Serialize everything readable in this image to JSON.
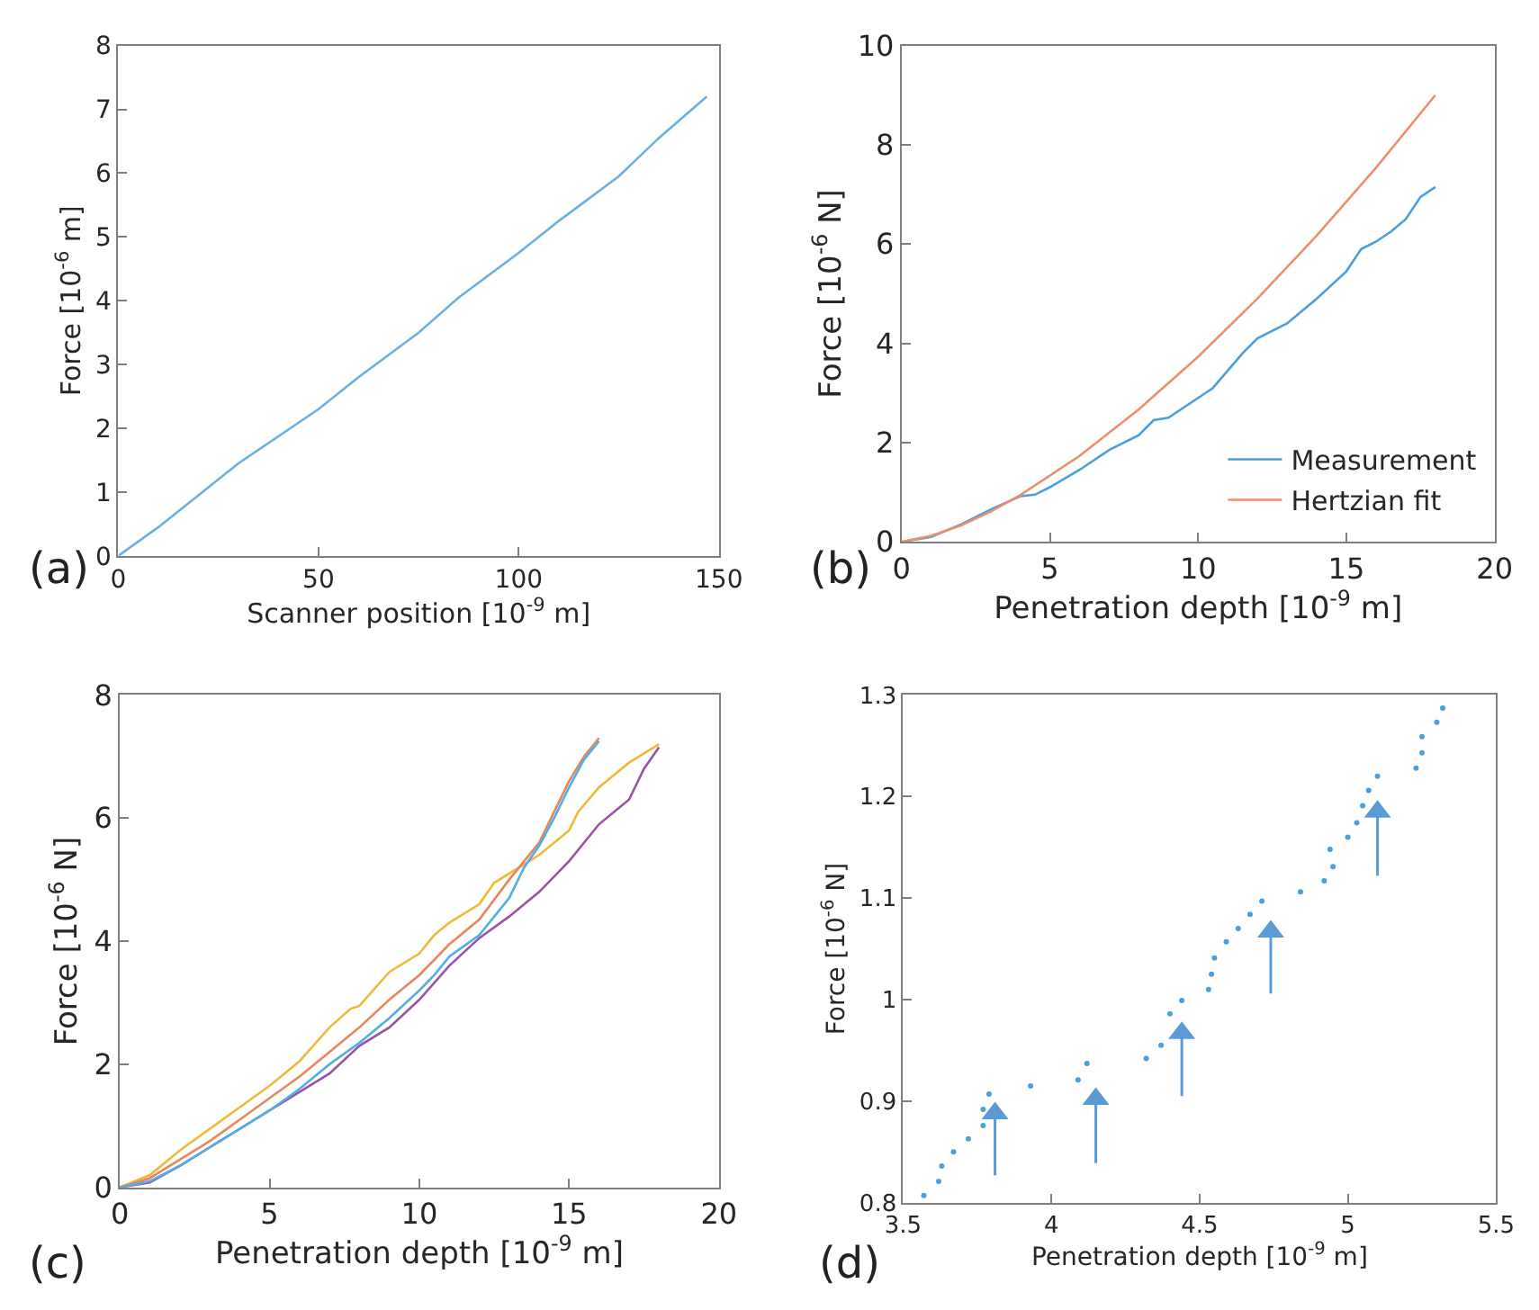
{
  "chart_data": [
    {
      "type": "line",
      "xlabel": "Scanner position [10$^{-9}$ m]",
      "ylabel": "Force [10$^{-6}$ m]",
      "xlim": [
        0,
        150
      ],
      "xticks": [
        0,
        50,
        100,
        150
      ],
      "ylim": [
        0,
        8
      ],
      "yticks": [
        0,
        1,
        2,
        3,
        4,
        5,
        6,
        7,
        8
      ],
      "legend": false,
      "annotations": [
        "(a)"
      ],
      "series": [
        {
          "color": "#6ab0e0",
          "x": [
            0,
            10,
            20,
            30,
            50,
            60,
            75,
            85,
            100,
            110,
            125,
            135,
            147
          ],
          "values": [
            0,
            0.45,
            0.95,
            1.45,
            2.3,
            2.8,
            3.5,
            4.05,
            4.75,
            5.25,
            5.95,
            6.55,
            7.2
          ]
        }
      ]
    },
    {
      "type": "line",
      "xlabel": "Penetration depth [10$^{-9}$ m]",
      "ylabel": "Force [10$^{-6}$ N]",
      "xlim": [
        0,
        20
      ],
      "xticks": [
        0,
        5,
        10,
        15,
        20
      ],
      "ylim": [
        0,
        10
      ],
      "yticks": [
        0,
        2,
        4,
        6,
        8,
        10
      ],
      "legend": "bottom right",
      "annotations": [
        "(b)"
      ],
      "series": [
        {
          "name": "Measurement",
          "color": "#4a9fdc",
          "x": [
            0,
            1,
            2,
            3,
            4,
            4.5,
            5,
            6,
            7,
            8,
            8.5,
            9,
            10,
            10.5,
            11,
            11.5,
            12,
            13,
            14,
            15,
            15.5,
            16,
            16.5,
            17,
            17.5,
            18
          ],
          "values": [
            0,
            0.1,
            0.35,
            0.65,
            0.92,
            0.95,
            1.1,
            1.45,
            1.85,
            2.15,
            2.45,
            2.5,
            2.9,
            3.1,
            3.45,
            3.8,
            4.1,
            4.4,
            4.9,
            5.45,
            5.9,
            6.05,
            6.25,
            6.5,
            6.95,
            7.15
          ]
        },
        {
          "name": "Hertzian fit",
          "color": "#ee8f6c",
          "x": [
            0,
            1,
            2,
            3,
            4,
            6,
            8,
            10,
            12,
            14,
            16,
            18
          ],
          "values": [
            0,
            0.12,
            0.33,
            0.61,
            0.94,
            1.73,
            2.67,
            3.73,
            4.9,
            6.17,
            7.54,
            9.0
          ]
        }
      ]
    },
    {
      "type": "line",
      "xlabel": "Penetration depth [10$^{-9}$ m]",
      "ylabel": "Force [10$^{-6}$ N]",
      "xlim": [
        0,
        20
      ],
      "xticks": [
        0,
        5,
        10,
        15,
        20
      ],
      "ylim": [
        0,
        8
      ],
      "yticks": [
        0,
        2,
        4,
        6,
        8
      ],
      "legend": false,
      "annotations": [
        "(c)"
      ],
      "series": [
        {
          "color": "#f0b93a",
          "x": [
            0,
            1,
            2,
            3,
            4,
            5,
            6,
            7,
            7.7,
            8,
            9,
            10,
            10.5,
            11,
            12,
            12.5,
            13,
            13.5,
            14,
            15,
            15.3,
            16,
            17,
            18
          ],
          "values": [
            0,
            0.2,
            0.6,
            0.95,
            1.3,
            1.65,
            2.05,
            2.6,
            2.9,
            2.95,
            3.5,
            3.8,
            4.1,
            4.3,
            4.6,
            4.95,
            5.1,
            5.25,
            5.4,
            5.8,
            6.1,
            6.5,
            6.9,
            7.2
          ]
        },
        {
          "color": "#9a52a8",
          "x": [
            0,
            1,
            2,
            3,
            4,
            5,
            6,
            7,
            8,
            9,
            10,
            11,
            12,
            13,
            14,
            15,
            16,
            17,
            17.5,
            18
          ],
          "values": [
            0,
            0.08,
            0.35,
            0.65,
            0.95,
            1.25,
            1.55,
            1.85,
            2.3,
            2.6,
            3.05,
            3.6,
            4.05,
            4.4,
            4.8,
            5.3,
            5.9,
            6.3,
            6.8,
            7.15
          ]
        },
        {
          "color": "#e8875e",
          "x": [
            0,
            1,
            2,
            3,
            4,
            5,
            6,
            7,
            8,
            9,
            10,
            11,
            12,
            13,
            13.5,
            14,
            14.5,
            15,
            15.5,
            16
          ],
          "values": [
            0,
            0.15,
            0.45,
            0.75,
            1.1,
            1.45,
            1.8,
            2.2,
            2.6,
            3.05,
            3.45,
            3.95,
            4.35,
            5.0,
            5.3,
            5.6,
            6.1,
            6.6,
            7.0,
            7.3
          ]
        },
        {
          "color": "#4fb0e6",
          "x": [
            0,
            1,
            2,
            3,
            4,
            5,
            6,
            7,
            8,
            9,
            10,
            10.5,
            11,
            12,
            13,
            13.5,
            14,
            14.5,
            15,
            15.5,
            16
          ],
          "values": [
            0,
            0.1,
            0.35,
            0.65,
            0.95,
            1.25,
            1.6,
            2.0,
            2.35,
            2.75,
            3.2,
            3.45,
            3.75,
            4.1,
            4.7,
            5.2,
            5.55,
            6.0,
            6.5,
            6.95,
            7.25
          ]
        }
      ]
    },
    {
      "type": "scatter",
      "marker": "circle",
      "xlabel": "Penetration depth [10$^{-9}$ m]",
      "ylabel": "Force [10$^{-6}$ N]",
      "xlim": [
        3.5,
        5.5
      ],
      "xticks": [
        3.5,
        4,
        4.5,
        5,
        5.5
      ],
      "ylim": [
        0.8,
        1.3
      ],
      "yticks": [
        0.8,
        0.9,
        1,
        1.1,
        1.2,
        1.3
      ],
      "legend": false,
      "annotations": [
        "(d)"
      ],
      "series": [
        {
          "color": "#4a9fdc",
          "x": [
            3.57,
            3.62,
            3.63,
            3.67,
            3.72,
            3.77,
            3.77,
            3.79,
            3.93,
            4.09,
            4.12,
            4.32,
            4.37,
            4.4,
            4.44,
            4.53,
            4.54,
            4.55,
            4.59,
            4.63,
            4.67,
            4.71,
            4.84,
            4.92,
            4.95,
            4.94,
            5.0,
            5.03,
            5.05,
            5.07,
            5.1,
            5.23,
            5.25,
            5.25,
            5.3,
            5.32
          ],
          "values": [
            0.807,
            0.821,
            0.836,
            0.85,
            0.863,
            0.876,
            0.892,
            0.907,
            0.915,
            0.921,
            0.937,
            0.942,
            0.955,
            0.986,
            0.999,
            1.01,
            1.025,
            1.041,
            1.057,
            1.07,
            1.084,
            1.097,
            1.106,
            1.117,
            1.131,
            1.148,
            1.16,
            1.174,
            1.191,
            1.206,
            1.22,
            1.228,
            1.243,
            1.259,
            1.273,
            1.287
          ]
        },
        {
          "color": "#5b9bd5",
          "marker": "triangle",
          "x": [
            3.81,
            4.15,
            4.44,
            4.74,
            5.1
          ],
          "values": [
            0.888,
            0.902,
            0.967,
            1.067,
            1.185
          ],
          "errors": [
            [
              0.827,
              0.888
            ],
            [
              0.839,
              0.902
            ],
            [
              0.905,
              0.967
            ],
            [
              1.006,
              1.067
            ],
            [
              1.122,
              1.185
            ]
          ]
        }
      ]
    }
  ]
}
